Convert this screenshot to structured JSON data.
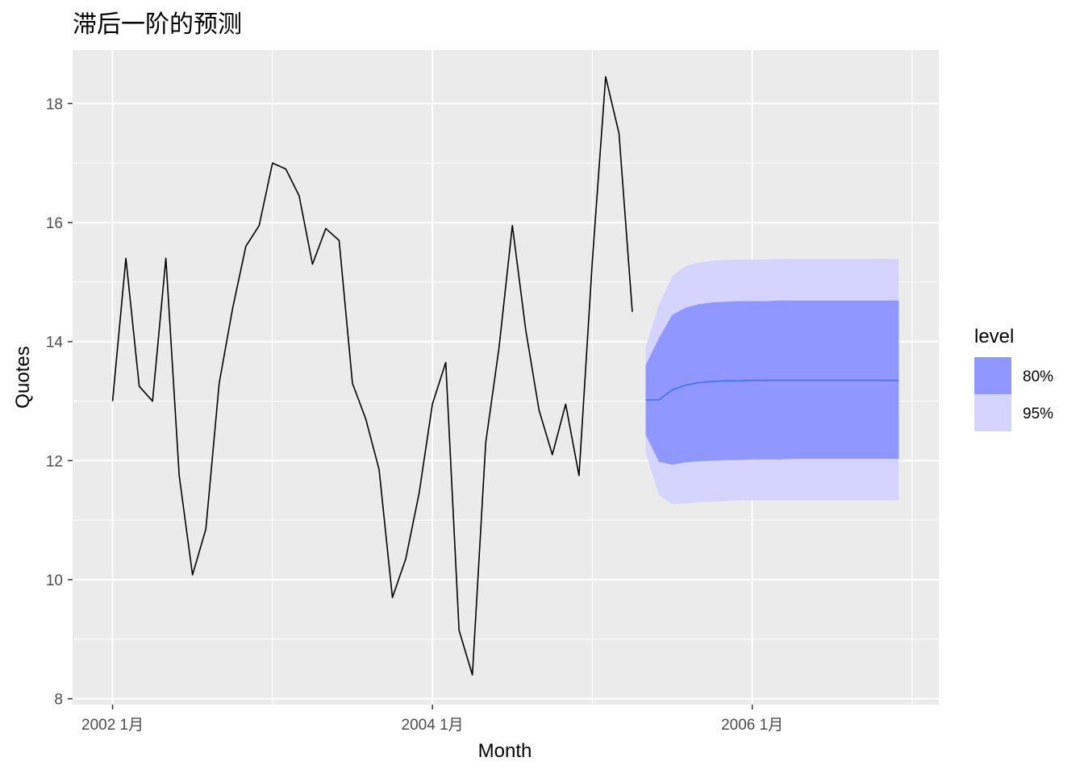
{
  "chart_data": {
    "type": "line",
    "title": "滞后一阶的预测",
    "xlabel": "Month",
    "ylabel": "Quotes",
    "x_tick_labels": [
      "2002 1月",
      "2004 1月",
      "2006 1月"
    ],
    "x_tick_months": [
      0,
      24,
      48
    ],
    "y_ticks": [
      8,
      10,
      12,
      14,
      16,
      18
    ],
    "xlim_months": [
      -3,
      62
    ],
    "ylim": [
      7.9,
      18.9
    ],
    "grid": true,
    "series": [
      {
        "x_start": "2002 1月",
        "values": [
          13.0,
          15.4,
          13.25,
          13.0,
          15.4,
          11.75,
          10.08,
          10.85,
          13.3,
          14.55,
          15.6,
          15.95,
          17.0,
          16.9,
          16.45,
          15.3,
          15.9,
          15.7,
          13.3,
          12.7,
          11.85,
          9.7,
          10.35,
          11.45,
          12.95,
          13.65,
          9.15,
          8.4,
          12.3,
          13.9,
          15.95,
          14.2,
          12.85,
          12.1,
          12.95,
          11.75,
          15.35,
          18.45,
          17.5,
          14.5
        ],
        "color": "#000000"
      }
    ],
    "forecast": {
      "x_start": "2005 5月",
      "mean": [
        13.02,
        13.02,
        13.19,
        13.27,
        13.31,
        13.33,
        13.34,
        13.34,
        13.35,
        13.35,
        13.35,
        13.35,
        13.35,
        13.35,
        13.35,
        13.35,
        13.35,
        13.35,
        13.35,
        13.35
      ],
      "lo80": [
        12.44,
        11.98,
        11.93,
        11.97,
        11.99,
        12.0,
        12.01,
        12.01,
        12.02,
        12.02,
        12.02,
        12.03,
        12.03,
        12.03,
        12.03,
        12.03,
        12.03,
        12.03,
        12.03,
        12.03
      ],
      "hi80": [
        13.6,
        14.06,
        14.45,
        14.57,
        14.63,
        14.66,
        14.67,
        14.68,
        14.68,
        14.68,
        14.69,
        14.69,
        14.69,
        14.69,
        14.69,
        14.69,
        14.69,
        14.69,
        14.69,
        14.69
      ],
      "lo95": [
        12.13,
        11.42,
        11.27,
        11.28,
        11.3,
        11.31,
        11.32,
        11.33,
        11.33,
        11.33,
        11.33,
        11.33,
        11.33,
        11.33,
        11.33,
        11.33,
        11.33,
        11.33,
        11.33,
        11.33
      ],
      "hi95": [
        13.91,
        14.62,
        15.1,
        15.27,
        15.33,
        15.36,
        15.37,
        15.38,
        15.38,
        15.38,
        15.39,
        15.39,
        15.39,
        15.39,
        15.39,
        15.39,
        15.39,
        15.39,
        15.39,
        15.39
      ],
      "mean_color": "#3b6cff"
    },
    "legend": {
      "title": "level",
      "position": "right",
      "items": [
        {
          "label": "80%",
          "color": "#9097ff"
        },
        {
          "label": "95%",
          "color": "#d4d4ff"
        }
      ]
    }
  }
}
